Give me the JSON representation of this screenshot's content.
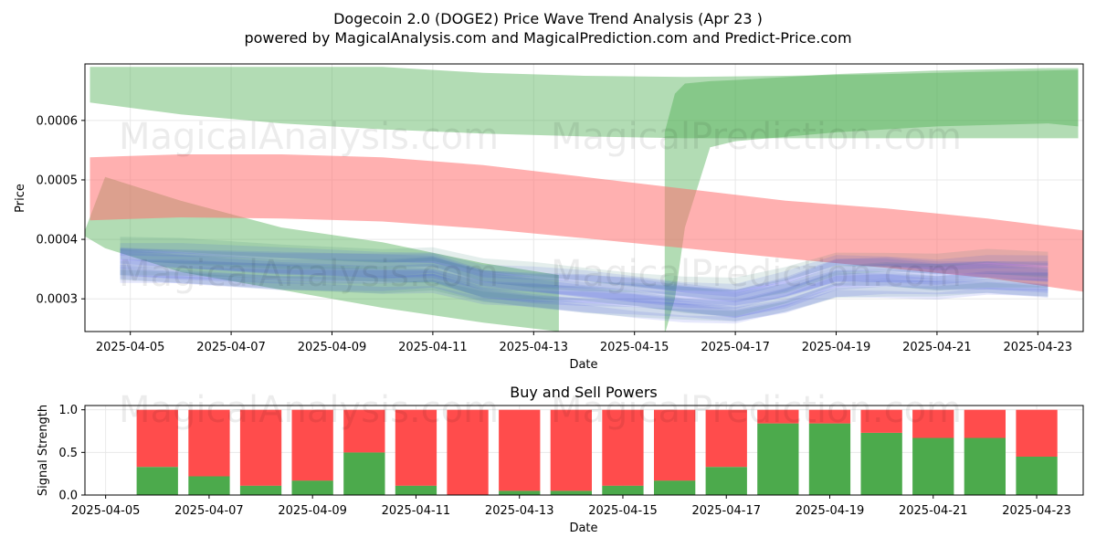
{
  "title": "Dogecoin 2.0 (DOGE2) Price Wave Trend Analysis (Apr 23 )",
  "subtitle": "powered by MagicalAnalysis.com and MagicalPrediction.com and Predict-Price.com",
  "watermarks": [
    "MagicalAnalysis.com",
    "MagicalPrediction.com"
  ],
  "colors": {
    "green_band": "#4caf50",
    "red_band": "#ff7070",
    "blue_wave": "#3a4fe6",
    "teal_wave": "#2e7d6b",
    "buy": "#4caa4c",
    "sell": "#ff4c4c",
    "grid": "#e8e8e8"
  },
  "chart_data": [
    {
      "type": "area",
      "title": "",
      "xlabel": "Date",
      "ylabel": "Price",
      "x_tick_labels": [
        "2025-04-05",
        "2025-04-07",
        "2025-04-09",
        "2025-04-11",
        "2025-04-13",
        "2025-04-15",
        "2025-04-17",
        "2025-04-19",
        "2025-04-21",
        "2025-04-23"
      ],
      "x_tick_days": [
        5,
        7,
        9,
        11,
        13,
        15,
        17,
        19,
        21,
        23
      ],
      "xlim_days": [
        4.1,
        23.9
      ],
      "y_tick_labels": [
        "0.0003",
        "0.0004",
        "0.0005",
        "0.0006"
      ],
      "y_tick_values": [
        0.0003,
        0.0004,
        0.0005,
        0.0006
      ],
      "ylim": [
        0.000245,
        0.000695
      ],
      "grid": true,
      "bands": [
        {
          "name": "green upper band",
          "color": "#4caf50",
          "opacity": 0.43,
          "days": [
            4.2,
            6,
            8,
            10,
            12,
            14,
            16,
            18,
            20,
            22,
            23.8
          ],
          "upper": [
            0.00069,
            0.00069,
            0.00069,
            0.00069,
            0.00068,
            0.000675,
            0.000673,
            0.000675,
            0.000678,
            0.000682,
            0.000685
          ],
          "lower": [
            0.00063,
            0.00061,
            0.000595,
            0.000585,
            0.000578,
            0.000573,
            0.00057,
            0.00057,
            0.00057,
            0.00057,
            0.00057
          ]
        },
        {
          "name": "green rising band",
          "color": "#4caf50",
          "opacity": 0.43,
          "days": [
            15.6,
            15.8,
            16,
            16.5,
            17,
            19,
            21,
            23.2,
            23.8
          ],
          "upper": [
            0.00058,
            0.000645,
            0.000662,
            0.000666,
            0.000668,
            0.000678,
            0.000684,
            0.000688,
            0.000688
          ],
          "lower": [
            0.00024,
            0.0003,
            0.00042,
            0.000555,
            0.000565,
            0.00058,
            0.00059,
            0.000595,
            0.00059
          ]
        },
        {
          "name": "green falling band",
          "color": "#4caf50",
          "opacity": 0.43,
          "days": [
            4.1,
            4.5,
            6,
            8,
            10,
            12,
            13.5
          ],
          "upper": [
            0.000415,
            0.000505,
            0.000465,
            0.00042,
            0.000395,
            0.00036,
            0.00034
          ],
          "lower": [
            0.000405,
            0.000385,
            0.000345,
            0.000315,
            0.000285,
            0.00026,
            0.000245
          ]
        },
        {
          "name": "red band",
          "color": "#ff7070",
          "opacity": 0.55,
          "days": [
            4.2,
            6,
            8,
            10,
            12,
            14,
            16,
            18,
            20,
            22,
            23.9
          ],
          "upper": [
            0.000538,
            0.000543,
            0.000543,
            0.000538,
            0.000525,
            0.000505,
            0.000485,
            0.000465,
            0.000452,
            0.000435,
            0.000415
          ],
          "lower": [
            0.000432,
            0.000437,
            0.000435,
            0.00043,
            0.000418,
            0.000402,
            0.000385,
            0.000368,
            0.000352,
            0.000335,
            0.000312
          ]
        }
      ],
      "waves": {
        "days": [
          4.8,
          6,
          8,
          10,
          11,
          12,
          13,
          14,
          15,
          16,
          17,
          18,
          19,
          20,
          21,
          22,
          23.2
        ],
        "center": [
          0.000362,
          0.000358,
          0.00035,
          0.000346,
          0.000348,
          0.000325,
          0.000318,
          0.000312,
          0.000306,
          0.000298,
          0.000292,
          0.00031,
          0.000338,
          0.00034,
          0.000336,
          0.00034,
          0.000336
        ],
        "count": 14,
        "spread": 4.5e-06,
        "thickness": 2.6e-05
      }
    },
    {
      "type": "bar",
      "title": "Buy and Sell Powers",
      "xlabel": "Date",
      "ylabel": "Signal Strength",
      "x_tick_labels": [
        "2025-04-05",
        "2025-04-07",
        "2025-04-09",
        "2025-04-11",
        "2025-04-13",
        "2025-04-15",
        "2025-04-17",
        "2025-04-19",
        "2025-04-21",
        "2025-04-23"
      ],
      "x_tick_days": [
        5,
        7,
        9,
        11,
        13,
        15,
        17,
        19,
        21,
        23
      ],
      "xlim_days": [
        4.6,
        23.9
      ],
      "y_tick_labels": [
        "0.0",
        "0.5",
        "1.0"
      ],
      "y_tick_values": [
        0,
        0.5,
        1.0
      ],
      "ylim": [
        0,
        1.05
      ],
      "grid": true,
      "bar_days": [
        6,
        7,
        8,
        9,
        10,
        11,
        12,
        13,
        14,
        15,
        16,
        17,
        18,
        19,
        20,
        21,
        22,
        23
      ],
      "series": [
        {
          "name": "Buy",
          "color": "#4caa4c",
          "values": [
            0.33,
            0.22,
            0.11,
            0.17,
            0.5,
            0.11,
            0.0,
            0.05,
            0.05,
            0.11,
            0.17,
            0.33,
            0.84,
            0.84,
            0.73,
            0.67,
            0.67,
            0.45
          ]
        },
        {
          "name": "Sell",
          "color": "#ff4c4c",
          "values": [
            0.67,
            0.78,
            0.89,
            0.83,
            0.5,
            0.89,
            1.0,
            0.95,
            0.95,
            0.89,
            0.83,
            0.67,
            0.16,
            0.16,
            0.27,
            0.33,
            0.33,
            0.55
          ]
        }
      ]
    }
  ]
}
